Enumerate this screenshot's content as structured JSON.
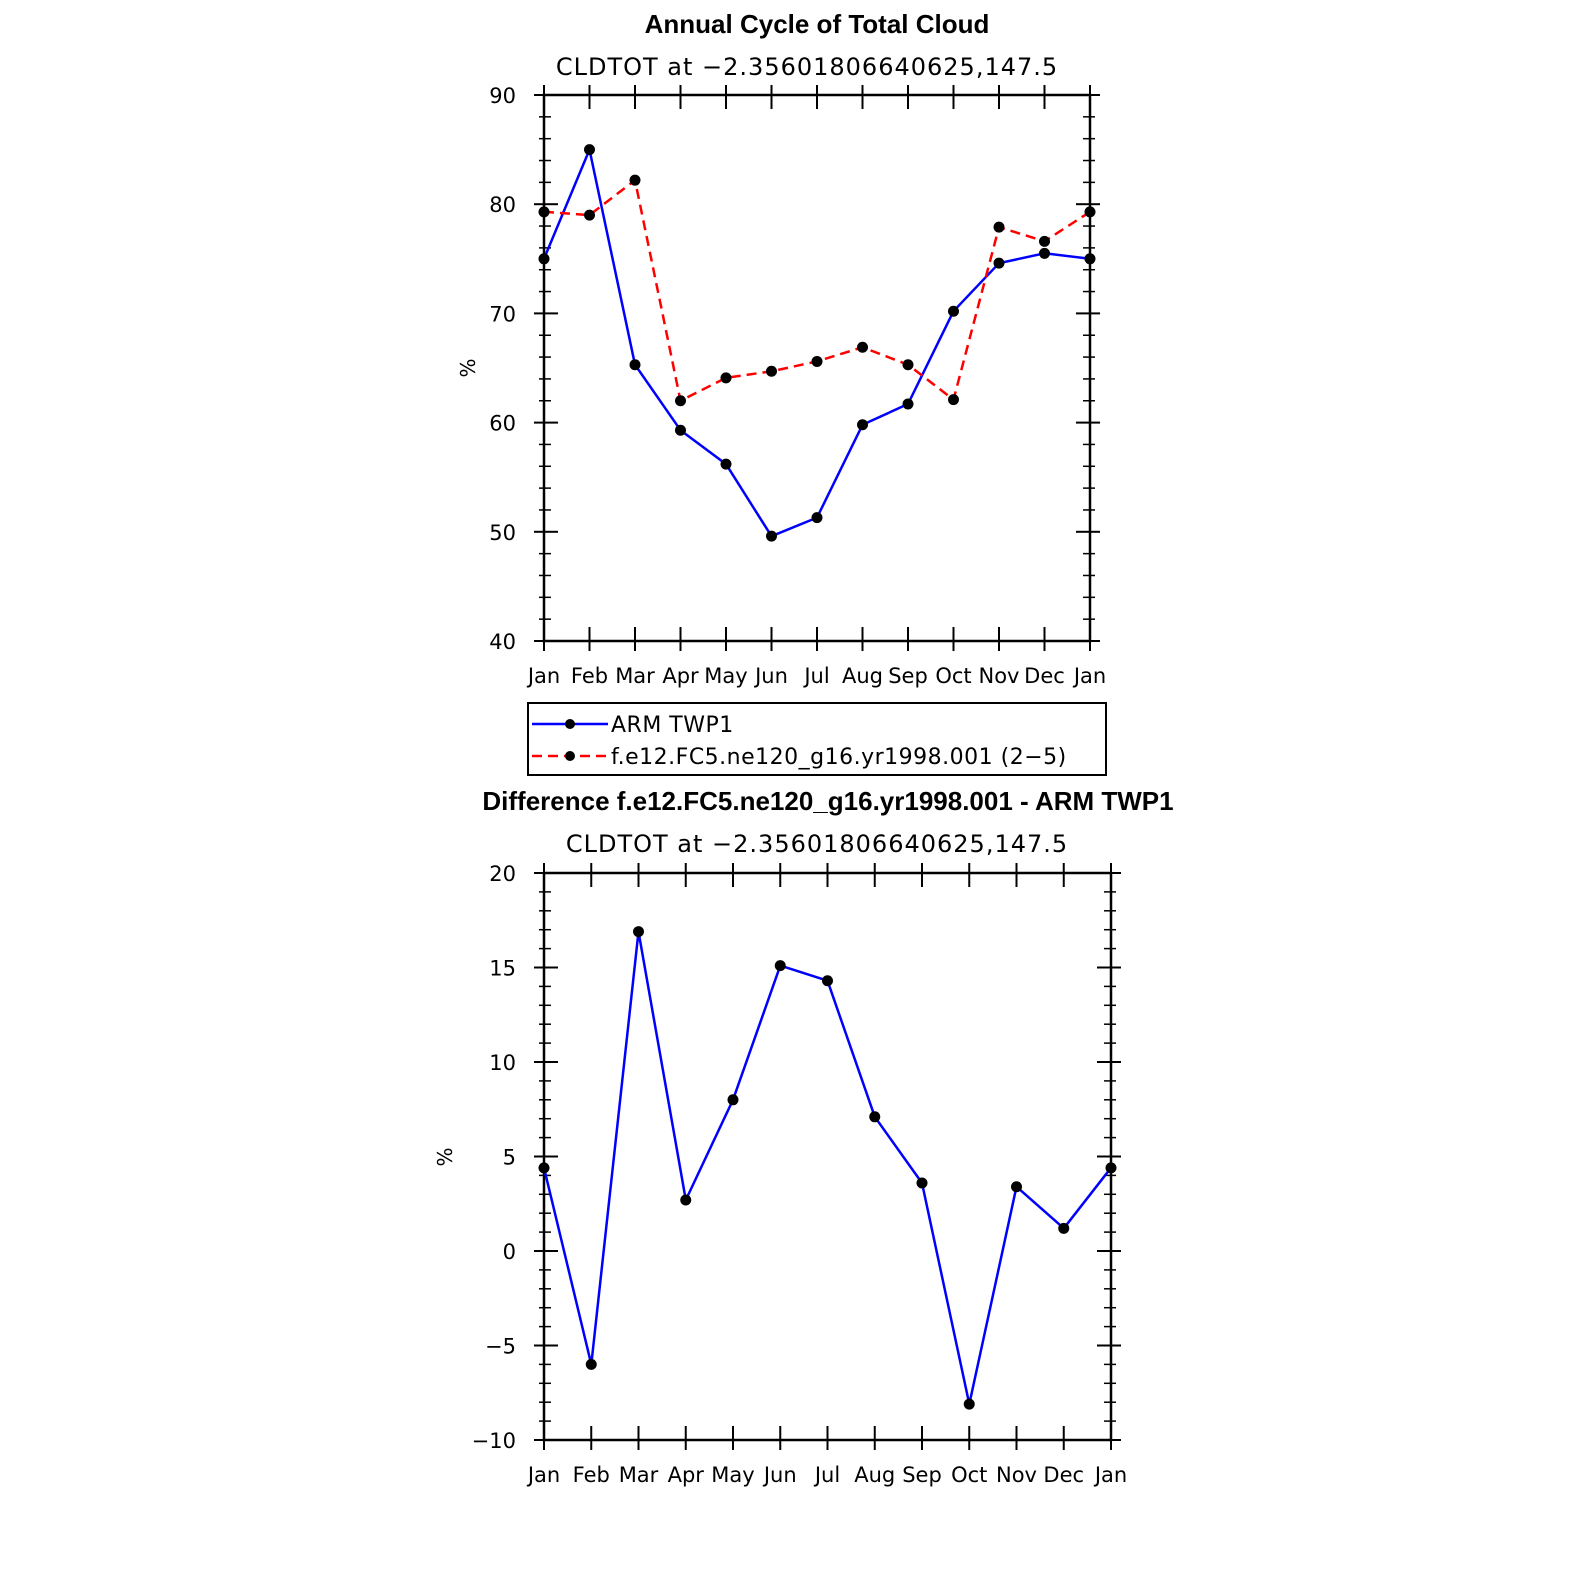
{
  "chart_data": [
    {
      "type": "line",
      "title": "Annual Cycle of Total Cloud",
      "subtitle": "CLDTOT at −2.35601806640625,147.5",
      "ylabel": "%",
      "ylim": [
        40,
        90
      ],
      "yticks": [
        "40",
        "50",
        "60",
        "70",
        "80",
        "90"
      ],
      "categories": [
        "Jan",
        "Feb",
        "Mar",
        "Apr",
        "May",
        "Jun",
        "Jul",
        "Aug",
        "Sep",
        "Oct",
        "Nov",
        "Dec",
        "Jan"
      ],
      "series": [
        {
          "name": "ARM TWP1",
          "color": "#0000ff",
          "dash": "solid",
          "values": [
            75.0,
            85.0,
            65.3,
            59.3,
            56.2,
            49.6,
            51.3,
            59.8,
            61.7,
            70.2,
            74.6,
            75.5,
            75.0
          ]
        },
        {
          "name": "f.e12.FC5.ne120_g16.yr1998.001 (2−5)",
          "color": "#ff0000",
          "dash": "dashed",
          "values": [
            79.3,
            79.0,
            82.2,
            62.0,
            64.1,
            64.7,
            65.6,
            66.9,
            65.3,
            62.1,
            77.9,
            76.6,
            79.3
          ]
        }
      ],
      "legend": "below"
    },
    {
      "type": "line",
      "title": "Difference f.e12.FC5.ne120_g16.yr1998.001 - ARM TWP1",
      "subtitle": "CLDTOT at −2.35601806640625,147.5",
      "ylabel": "%",
      "ylim": [
        -10,
        20
      ],
      "yticks": [
        "−10",
        "−5",
        "0",
        "5",
        "10",
        "15",
        "20"
      ],
      "categories": [
        "Jan",
        "Feb",
        "Mar",
        "Apr",
        "May",
        "Jun",
        "Jul",
        "Aug",
        "Sep",
        "Oct",
        "Nov",
        "Dec",
        "Jan"
      ],
      "series": [
        {
          "color": "#0000ff",
          "dash": "solid",
          "values": [
            4.4,
            -6.0,
            16.9,
            2.7,
            8.0,
            15.1,
            14.3,
            7.1,
            3.6,
            -8.1,
            3.4,
            1.2,
            4.4
          ]
        }
      ]
    }
  ]
}
